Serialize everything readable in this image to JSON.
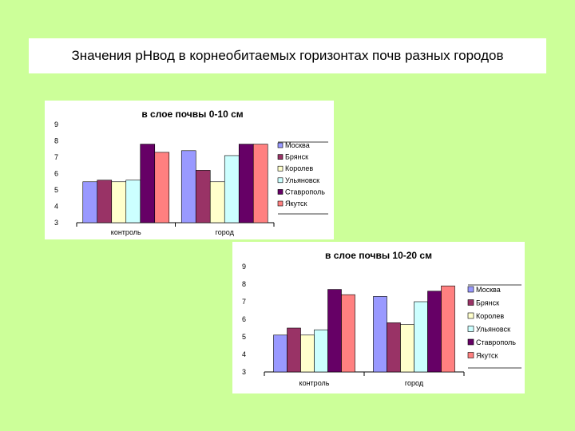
{
  "slide": {
    "title": "Значения pHвод в корнеобитаемых горизонтах почв разных городов",
    "background": "#ccff99"
  },
  "chart_data": [
    {
      "type": "bar",
      "title": "в слое почвы 0-10 см",
      "categories": [
        "контроль",
        "город"
      ],
      "ylim": [
        3,
        9
      ],
      "yticks": [
        3,
        4,
        5,
        6,
        7,
        8,
        9
      ],
      "grid": false,
      "legend_position": "right",
      "series": [
        {
          "name": "Москва",
          "color": "#9999ff",
          "values": [
            5.5,
            7.4
          ]
        },
        {
          "name": "Брянск",
          "color": "#993366",
          "values": [
            5.6,
            6.2
          ]
        },
        {
          "name": "Королев",
          "color": "#ffffcc",
          "values": [
            5.5,
            5.5
          ]
        },
        {
          "name": "Ульяновск",
          "color": "#ccffff",
          "values": [
            5.6,
            7.1
          ]
        },
        {
          "name": "Ставрополь",
          "color": "#660066",
          "values": [
            7.8,
            7.8
          ]
        },
        {
          "name": "Якутск",
          "color": "#ff8080",
          "values": [
            7.3,
            7.8
          ]
        }
      ]
    },
    {
      "type": "bar",
      "title": "в слое почвы 10-20 см",
      "categories": [
        "контроль",
        "город"
      ],
      "ylim": [
        3,
        9
      ],
      "yticks": [
        3,
        4,
        5,
        6,
        7,
        8,
        9
      ],
      "grid": false,
      "legend_position": "right",
      "series": [
        {
          "name": "Москва",
          "color": "#9999ff",
          "values": [
            5.1,
            7.3
          ]
        },
        {
          "name": "Брянск",
          "color": "#993366",
          "values": [
            5.5,
            5.8
          ]
        },
        {
          "name": "Королев",
          "color": "#ffffcc",
          "values": [
            5.1,
            5.7
          ]
        },
        {
          "name": "Ульяновск",
          "color": "#ccffff",
          "values": [
            5.4,
            7.0
          ]
        },
        {
          "name": "Ставрополь",
          "color": "#660066",
          "values": [
            7.7,
            7.6
          ]
        },
        {
          "name": "Якутск",
          "color": "#ff8080",
          "values": [
            7.4,
            7.9
          ]
        }
      ]
    }
  ]
}
